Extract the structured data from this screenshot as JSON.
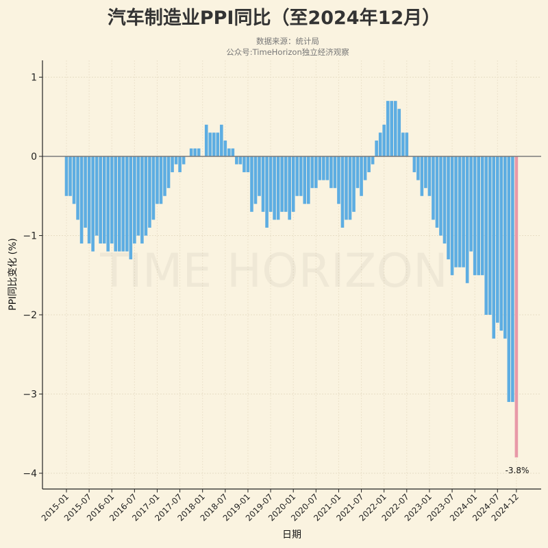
{
  "title": "汽车制造业PPI同比（至2024年12月）",
  "subtitle_source": "数据来源：统计局",
  "subtitle_account": "公众号:TimeHorizon独立经济观察",
  "watermark": "TIME HORIZON",
  "chart_data": {
    "type": "bar",
    "xlabel": "日期",
    "ylabel": "PPI同比变化 (%)",
    "ylim": [
      -4.2,
      1.2
    ],
    "yticks": [
      1,
      0,
      -1,
      -2,
      -3,
      -4
    ],
    "ytick_labels": [
      "1",
      "0",
      "−1",
      "−2",
      "−3",
      "−4"
    ],
    "xtick_labels": [
      "2015-01",
      "2015-07",
      "2016-01",
      "2016-07",
      "2017-01",
      "2017-07",
      "2018-01",
      "2018-07",
      "2019-01",
      "2019-07",
      "2020-01",
      "2020-07",
      "2021-01",
      "2021-07",
      "2022-01",
      "2022-07",
      "2023-01",
      "2023-07",
      "2024-01",
      "2024-07",
      "2024-12"
    ],
    "start": "2015-01",
    "end": "2024-12",
    "grid": true,
    "colors": {
      "bar": "#5dade2",
      "highlight": "#e899a8",
      "zero_line": "#7a7a7a"
    },
    "annotation": {
      "label": "-3.8%",
      "month": "2024-12"
    },
    "values": [
      -0.5,
      -0.5,
      -0.6,
      -0.8,
      -1.1,
      -0.9,
      -1.1,
      -1.2,
      -1.0,
      -1.1,
      -1.1,
      -1.2,
      -1.1,
      -1.2,
      -1.2,
      -1.2,
      -1.2,
      -1.3,
      -1.1,
      -1.0,
      -1.1,
      -1.0,
      -0.9,
      -0.8,
      -0.6,
      -0.6,
      -0.5,
      -0.4,
      -0.2,
      -0.1,
      -0.2,
      -0.1,
      0,
      0.1,
      0.1,
      0.1,
      0,
      0.4,
      0.3,
      0.3,
      0.3,
      0.4,
      0.2,
      0.1,
      0.1,
      -0.1,
      -0.1,
      -0.2,
      -0.2,
      -0.7,
      -0.6,
      -0.5,
      -0.7,
      -0.9,
      -0.7,
      -0.8,
      -0.8,
      -0.7,
      -0.7,
      -0.8,
      -0.7,
      -0.5,
      -0.5,
      -0.6,
      -0.6,
      -0.4,
      -0.4,
      -0.3,
      -0.3,
      -0.3,
      -0.4,
      -0.4,
      -0.6,
      -0.9,
      -0.8,
      -0.8,
      -0.7,
      -0.4,
      -0.5,
      -0.3,
      -0.2,
      -0.1,
      0.2,
      0.3,
      0.4,
      0.7,
      0.7,
      0.7,
      0.6,
      0.3,
      0.3,
      0,
      -0.2,
      -0.3,
      -0.5,
      -0.4,
      -0.5,
      -0.8,
      -0.9,
      -1.0,
      -1.1,
      -1.3,
      -1.5,
      -1.4,
      -1.4,
      -1.4,
      -1.6,
      -1.2,
      -1.5,
      -1.5,
      -1.5,
      -2.0,
      -2.0,
      -2.3,
      -2.1,
      -2.2,
      -2.3,
      -3.1,
      -3.1,
      -3.8
    ]
  }
}
